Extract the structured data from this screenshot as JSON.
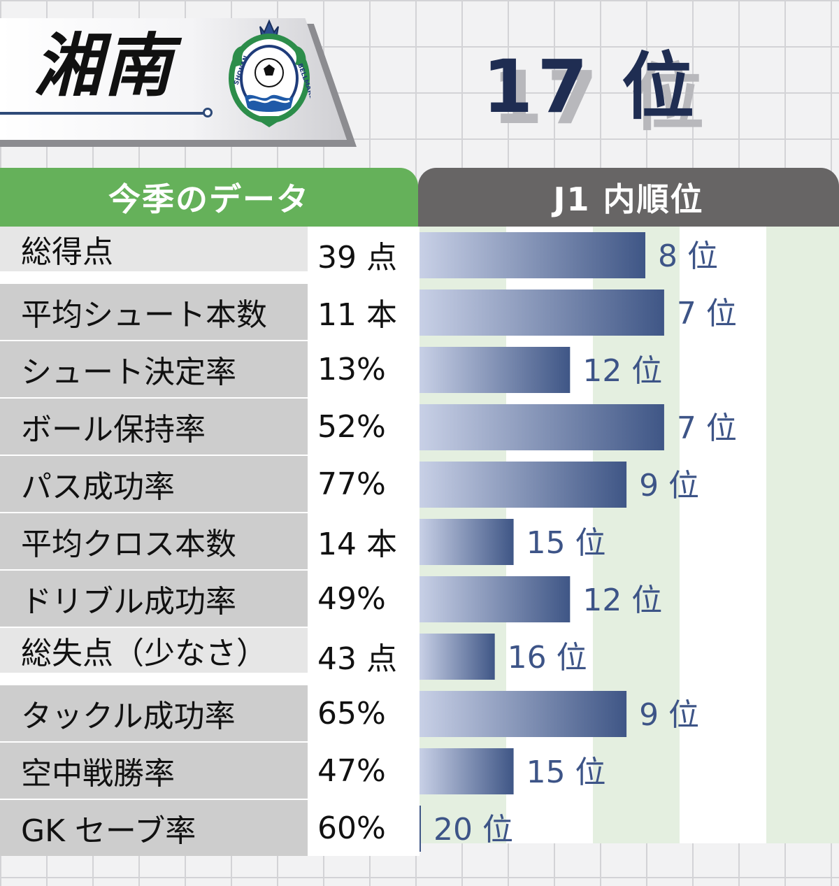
{
  "team": {
    "name": "湘南",
    "crest_text": "SHONAN BELLMARE"
  },
  "standing": {
    "rank_number": "17",
    "rank_unit": "位"
  },
  "headers": {
    "left": "今季のデータ",
    "right": "J1 内順位"
  },
  "colors": {
    "bar_dark": "#3f5686",
    "bar_light": "#c8d0e6",
    "rank_text": "#3d5487",
    "header_green": "#65b15a",
    "header_gray": "#676565"
  },
  "chart_data": {
    "type": "bar",
    "orientation": "horizontal",
    "rank_scale": {
      "best": 1,
      "worst": 20
    },
    "categories": [
      "総得点",
      "平均シュート本数",
      "シュート決定率",
      "ボール保持率",
      "パス成功率",
      "平均クロス本数",
      "ドリブル成功率",
      "総失点（少なさ）",
      "タックル成功率",
      "空中戦勝率",
      "GK セーブ率"
    ],
    "stat_values": [
      "39 点",
      "11 本",
      "13%",
      "52%",
      "77%",
      "14 本",
      "49%",
      "43 点",
      "65%",
      "47%",
      "60%"
    ],
    "ranks": [
      8,
      7,
      12,
      7,
      9,
      15,
      12,
      16,
      9,
      15,
      20
    ],
    "rank_labels": [
      "8 位",
      "7 位",
      "12 位",
      "7 位",
      "9 位",
      "15 位",
      "12 位",
      "16 位",
      "9 位",
      "15 位",
      "20 位"
    ]
  }
}
